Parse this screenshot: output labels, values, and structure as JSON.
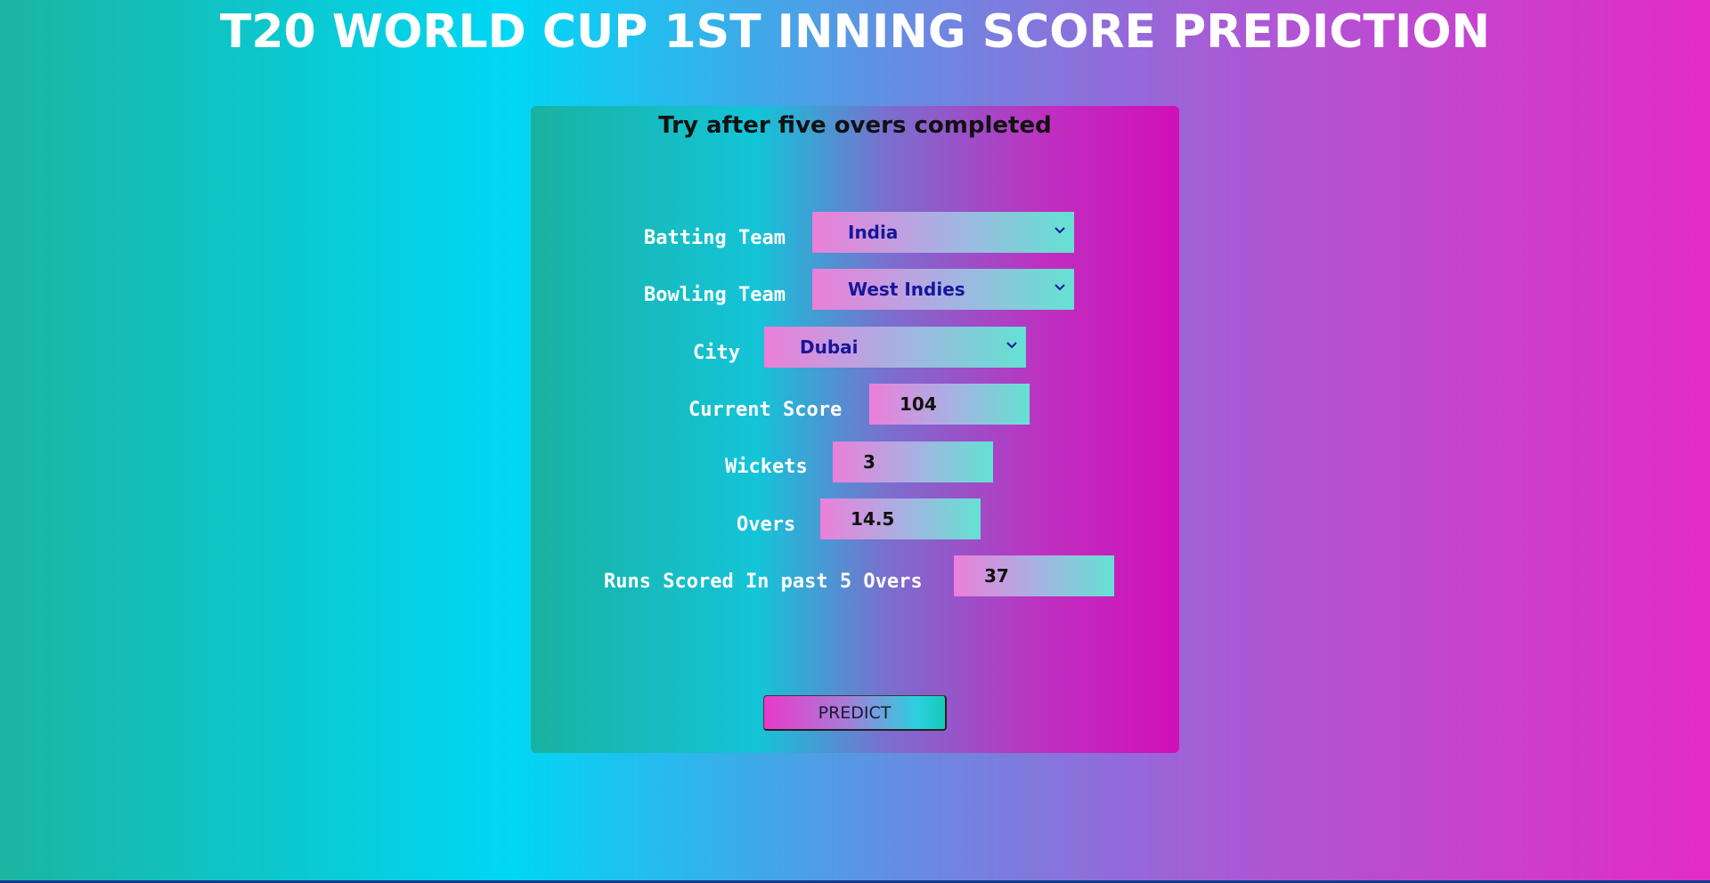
{
  "header": {
    "title": "T20 WORLD CUP 1ST INNING SCORE PREDICTION"
  },
  "card": {
    "subtitle": "Try after five overs completed",
    "fields": {
      "batting_team": {
        "label": "Batting Team",
        "value": "India",
        "icon": "chevron-down-icon"
      },
      "bowling_team": {
        "label": "Bowling Team",
        "value": "West Indies",
        "icon": "chevron-down-icon"
      },
      "city": {
        "label": "City",
        "value": "Dubai",
        "icon": "chevron-down-icon"
      },
      "current_score": {
        "label": "Current Score",
        "value": "104"
      },
      "wickets": {
        "label": "Wickets",
        "value": "3"
      },
      "overs": {
        "label": "Overs",
        "value": "14.5"
      },
      "runs_last_5": {
        "label": "Runs Scored In past 5 Overs",
        "value": "37"
      }
    },
    "predict_label": "PREDICT"
  },
  "colors": {
    "page_gradient": [
      "#1bb5a1",
      "#00d7f5",
      "#6f86e0",
      "#a95ad6",
      "#e32bc9"
    ],
    "card_gradient": [
      "#19b2a1",
      "#14c4d8",
      "#7a6fce",
      "#c02ec0",
      "#d010b8"
    ],
    "field_gradient": [
      "#ec7fd9",
      "#a9b0e3",
      "#63e2d2"
    ],
    "select_text": "#17169a"
  }
}
